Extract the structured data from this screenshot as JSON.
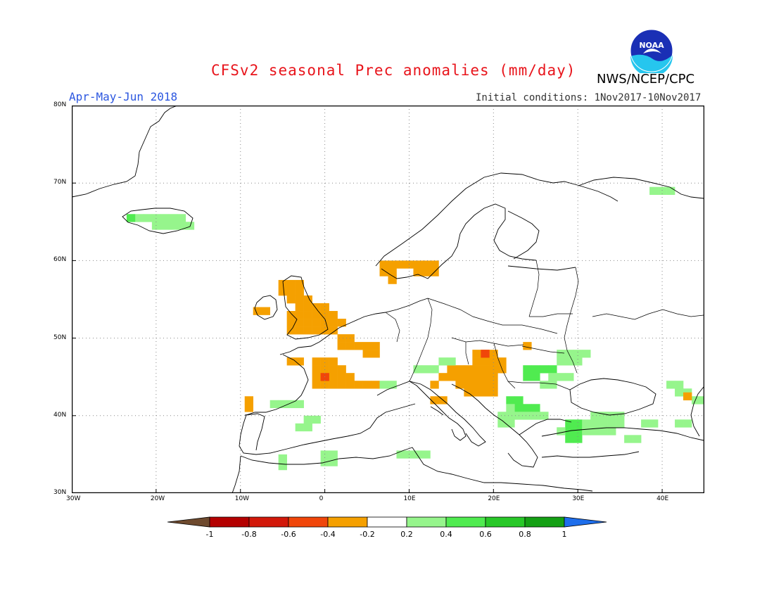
{
  "header": {
    "title": "CFSv2 seasonal Prec anomalies (mm/day)",
    "season": "Apr-May-Jun 2018",
    "initial_conditions": "Initial conditions: 1Nov2017-10Nov2017",
    "agency": "NWS/NCEP/CPC",
    "logo_text": "NOAA"
  },
  "map": {
    "projection": "lat-lon",
    "lon_range": [
      -30,
      45
    ],
    "lat_range": [
      30,
      80
    ],
    "grid": "dotted",
    "lat_ticks": [
      {
        "value": 30,
        "label": "30N"
      },
      {
        "value": 40,
        "label": "40N"
      },
      {
        "value": 50,
        "label": "50N"
      },
      {
        "value": 60,
        "label": "60N"
      },
      {
        "value": 70,
        "label": "70N"
      },
      {
        "value": 80,
        "label": "80N"
      }
    ],
    "lon_ticks": [
      {
        "value": -30,
        "label": "30W"
      },
      {
        "value": -20,
        "label": "20W"
      },
      {
        "value": -10,
        "label": "10W"
      },
      {
        "value": 0,
        "label": "0"
      },
      {
        "value": 10,
        "label": "10E"
      },
      {
        "value": 20,
        "label": "20E"
      },
      {
        "value": 30,
        "label": "30E"
      },
      {
        "value": 40,
        "label": "40E"
      }
    ],
    "anomaly_regions": [
      {
        "name": "Iceland",
        "class": "0.2-0.4",
        "cells": [
          [
            -22,
            65.5
          ],
          [
            -21,
            65.5
          ],
          [
            -20,
            65.5
          ],
          [
            -19,
            65.5
          ],
          [
            -18,
            65.5
          ],
          [
            -17,
            65.5
          ],
          [
            -20,
            64.5
          ],
          [
            -19,
            64.5
          ],
          [
            -18,
            64.5
          ],
          [
            -17,
            64.5
          ],
          [
            -16,
            64.5
          ]
        ]
      },
      {
        "name": "Iceland west",
        "class": "0.4-0.6",
        "cells": [
          [
            -23,
            65.5
          ]
        ]
      },
      {
        "name": "Southern Norway",
        "class": "-0.4--0.2",
        "cells": [
          [
            7,
            59.5
          ],
          [
            8,
            59.5
          ],
          [
            9,
            59.5
          ],
          [
            10,
            59.5
          ],
          [
            11,
            59.5
          ],
          [
            12,
            59.5
          ],
          [
            13,
            59.5
          ],
          [
            7,
            58.5
          ],
          [
            8,
            58.5
          ],
          [
            11,
            58.5
          ],
          [
            12,
            58.5
          ],
          [
            13,
            58.5
          ],
          [
            8,
            57.5
          ]
        ]
      },
      {
        "name": "British Isles",
        "class": "-0.4--0.2",
        "cells": [
          [
            -5,
            57
          ],
          [
            -4,
            57
          ],
          [
            -3,
            57
          ],
          [
            -5,
            56
          ],
          [
            -4,
            56
          ],
          [
            -3,
            56
          ],
          [
            -4,
            55
          ],
          [
            -3,
            55
          ],
          [
            -2,
            55
          ],
          [
            -3,
            54
          ],
          [
            -2,
            54
          ],
          [
            -1,
            54
          ],
          [
            0,
            54
          ],
          [
            -4,
            53
          ],
          [
            -3,
            53
          ],
          [
            -2,
            53
          ],
          [
            -1,
            53
          ],
          [
            0,
            53
          ],
          [
            1,
            53
          ],
          [
            -4,
            52
          ],
          [
            -3,
            52
          ],
          [
            -2,
            52
          ],
          [
            -1,
            52
          ],
          [
            0,
            52
          ],
          [
            1,
            52
          ],
          [
            2,
            52
          ],
          [
            -4,
            51
          ],
          [
            -3,
            51
          ],
          [
            -2,
            51
          ],
          [
            -1,
            51
          ],
          [
            0,
            51
          ],
          [
            1,
            51
          ],
          [
            -8,
            53.5
          ],
          [
            -7,
            53.5
          ]
        ]
      },
      {
        "name": "France and Benelux",
        "class": "-0.4--0.2",
        "cells": [
          [
            2,
            50
          ],
          [
            3,
            50
          ],
          [
            2,
            49
          ],
          [
            3,
            49
          ],
          [
            4,
            49
          ],
          [
            5,
            49
          ],
          [
            6,
            49
          ],
          [
            5,
            48
          ],
          [
            6,
            48
          ],
          [
            -4,
            47
          ],
          [
            -3,
            47
          ],
          [
            -1,
            47
          ],
          [
            0,
            47
          ],
          [
            1,
            47
          ],
          [
            -1,
            46
          ],
          [
            0,
            46
          ],
          [
            1,
            46
          ],
          [
            2,
            46
          ],
          [
            -1,
            45
          ],
          [
            0,
            45
          ],
          [
            1,
            45
          ],
          [
            2,
            45
          ],
          [
            3,
            45
          ],
          [
            -1,
            44
          ],
          [
            0,
            44
          ],
          [
            1,
            44
          ],
          [
            2,
            44
          ],
          [
            3,
            44
          ],
          [
            4,
            44
          ],
          [
            5,
            44
          ],
          [
            6,
            44
          ]
        ]
      },
      {
        "name": "SW France",
        "class": "-0.6--0.4",
        "cells": [
          [
            0,
            45
          ]
        ]
      },
      {
        "name": "Portugal",
        "class": "-0.4--0.2",
        "cells": [
          [
            -9,
            42
          ],
          [
            -9,
            41
          ]
        ]
      },
      {
        "name": "Balkans",
        "class": "-0.4--0.2",
        "cells": [
          [
            18,
            48
          ],
          [
            19,
            48
          ],
          [
            20,
            48
          ],
          [
            18,
            47
          ],
          [
            19,
            47
          ],
          [
            20,
            47
          ],
          [
            21,
            47
          ],
          [
            15,
            46
          ],
          [
            16,
            46
          ],
          [
            17,
            46
          ],
          [
            18,
            46
          ],
          [
            19,
            46
          ],
          [
            20,
            46
          ],
          [
            21,
            46
          ],
          [
            14,
            45
          ],
          [
            15,
            45
          ],
          [
            16,
            45
          ],
          [
            17,
            45
          ],
          [
            18,
            45
          ],
          [
            19,
            45
          ],
          [
            20,
            45
          ],
          [
            16,
            44
          ],
          [
            17,
            44
          ],
          [
            18,
            44
          ],
          [
            19,
            44
          ],
          [
            20,
            44
          ],
          [
            17,
            43
          ],
          [
            18,
            43
          ],
          [
            19,
            43
          ],
          [
            20,
            43
          ],
          [
            13,
            44
          ],
          [
            13,
            42
          ],
          [
            14,
            42
          ],
          [
            24,
            49
          ]
        ]
      },
      {
        "name": "Slovakia",
        "class": "-0.6--0.4",
        "cells": [
          [
            19,
            48
          ]
        ]
      },
      {
        "name": "Romania Moldova",
        "class": "0.4-0.6",
        "cells": [
          [
            24,
            46
          ],
          [
            25,
            46
          ],
          [
            26,
            46
          ],
          [
            24,
            45
          ],
          [
            25,
            45
          ],
          [
            27,
            46
          ],
          [
            22,
            42
          ],
          [
            23,
            42
          ],
          [
            23,
            41
          ],
          [
            24,
            41
          ],
          [
            25,
            41
          ],
          [
            29,
            39
          ],
          [
            30,
            39
          ],
          [
            29,
            38
          ],
          [
            30,
            38
          ],
          [
            29,
            37
          ],
          [
            30,
            37
          ]
        ]
      },
      {
        "name": "Eastern Europe green",
        "class": "0.2-0.4",
        "cells": [
          [
            28,
            48
          ],
          [
            29,
            48
          ],
          [
            30,
            48
          ],
          [
            31,
            48
          ],
          [
            28,
            47
          ],
          [
            29,
            47
          ],
          [
            30,
            47
          ],
          [
            27,
            45
          ],
          [
            28,
            45
          ],
          [
            29,
            45
          ],
          [
            26,
            44
          ],
          [
            27,
            44
          ],
          [
            22,
            41
          ],
          [
            21,
            40
          ],
          [
            22,
            40
          ],
          [
            23,
            40
          ],
          [
            24,
            40
          ],
          [
            25,
            40
          ],
          [
            26,
            40
          ],
          [
            21,
            39
          ],
          [
            22,
            39
          ],
          [
            32,
            40
          ],
          [
            33,
            40
          ],
          [
            34,
            40
          ],
          [
            35,
            40
          ],
          [
            31,
            39
          ],
          [
            32,
            39
          ],
          [
            33,
            39
          ],
          [
            34,
            39
          ],
          [
            35,
            39
          ],
          [
            28,
            38
          ],
          [
            31,
            38
          ],
          [
            32,
            38
          ],
          [
            33,
            38
          ],
          [
            34,
            38
          ],
          [
            11,
            46
          ],
          [
            12,
            46
          ],
          [
            13,
            46
          ],
          [
            14,
            47
          ],
          [
            15,
            47
          ],
          [
            7,
            44
          ],
          [
            8,
            44
          ]
        ]
      },
      {
        "name": "Iberia green",
        "class": "0.2-0.4",
        "cells": [
          [
            -6,
            41.5
          ],
          [
            -5,
            41.5
          ],
          [
            -4,
            41.5
          ],
          [
            -3,
            41.5
          ],
          [
            -2,
            39.5
          ],
          [
            -1,
            39.5
          ],
          [
            -3,
            38.5
          ],
          [
            -2,
            38.5
          ],
          [
            -5,
            34.5
          ],
          [
            -5,
            33.5
          ],
          [
            0,
            35
          ],
          [
            1,
            35
          ],
          [
            0,
            34
          ],
          [
            1,
            34
          ],
          [
            9,
            35
          ],
          [
            10,
            35
          ],
          [
            11,
            35
          ],
          [
            12,
            35
          ]
        ]
      },
      {
        "name": "Caucasus",
        "class": "0.2-0.4",
        "cells": [
          [
            41,
            44
          ],
          [
            42,
            44
          ],
          [
            42,
            43
          ],
          [
            43,
            43
          ],
          [
            44,
            42
          ],
          [
            45,
            42
          ],
          [
            38,
            39
          ],
          [
            39,
            39
          ],
          [
            42,
            39
          ],
          [
            43,
            39
          ],
          [
            36,
            37
          ],
          [
            37,
            37
          ],
          [
            39,
            69
          ],
          [
            40,
            69
          ],
          [
            41,
            69
          ]
        ]
      },
      {
        "name": "Caucasus orange",
        "class": "-0.4--0.2",
        "cells": [
          [
            43,
            42.5
          ]
        ]
      }
    ]
  },
  "colorbar": {
    "labels": [
      "-1",
      "-0.8",
      "-0.6",
      "-0.4",
      "-0.2",
      "0.2",
      "0.4",
      "0.6",
      "0.8",
      "1"
    ],
    "colors": {
      "lt_-1": "#6e4a2e",
      "-1--0.8": "#b40000",
      "-0.8--0.6": "#d2180a",
      "-0.6--0.4": "#f0460a",
      "-0.4--0.2": "#f5a000",
      "-0.2-0.2": "#ffffff",
      "0.2-0.4": "#96f58c",
      "0.4-0.6": "#50eb50",
      "0.6-0.8": "#28c828",
      "0.8-1": "#14a014",
      "gt_1": "#1e6eeb"
    }
  }
}
